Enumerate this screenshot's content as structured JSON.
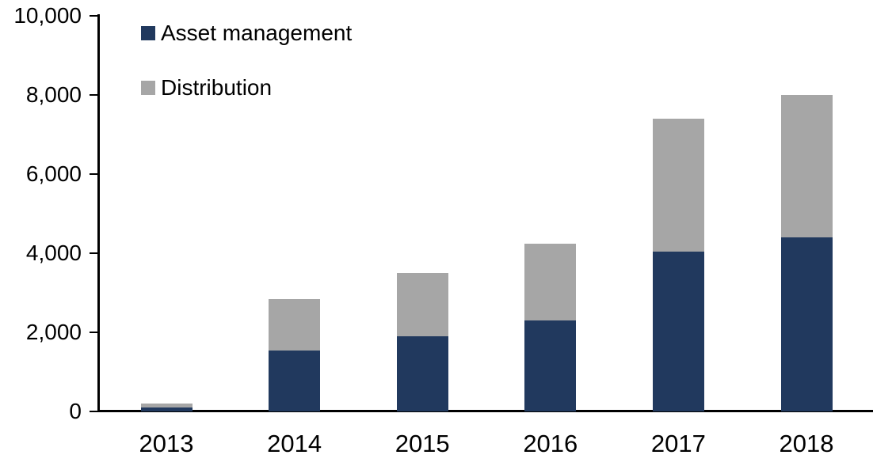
{
  "chart_data": {
    "type": "bar",
    "stacked": true,
    "title": "",
    "xlabel": "",
    "ylabel": "",
    "categories": [
      "2013",
      "2014",
      "2015",
      "2016",
      "2017",
      "2018"
    ],
    "series": [
      {
        "name": "Asset management",
        "color": "#21395E",
        "values": [
          100,
          1550,
          1900,
          2300,
          4050,
          4400
        ]
      },
      {
        "name": "Distribution",
        "color": "#A6A6A6",
        "values": [
          100,
          1300,
          1600,
          1950,
          3350,
          3600
        ]
      }
    ],
    "totals": [
      200,
      2850,
      3500,
      4250,
      7400,
      8000
    ],
    "ylim": [
      0,
      10000
    ],
    "yticks": [
      0,
      2000,
      4000,
      6000,
      8000,
      10000
    ],
    "ytick_labels": [
      "0",
      "2,000",
      "4,000",
      "6,000",
      "8,000",
      "10,000"
    ],
    "grid": false,
    "legend_position": "top-left",
    "axis_color": "#000000",
    "background_color": "#FFFFFF"
  }
}
